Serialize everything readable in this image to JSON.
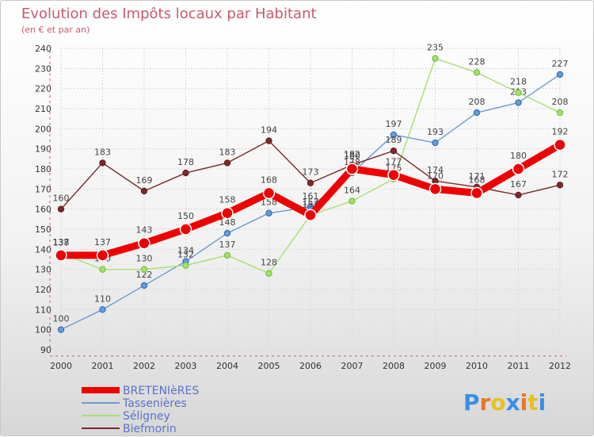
{
  "chart_data": {
    "type": "line",
    "title": "Evolution des Impôts locaux par Habitant",
    "subtitle": "(en € et par an)",
    "x": [
      "2000",
      "2001",
      "2002",
      "2003",
      "2004",
      "2005",
      "2006",
      "2007",
      "2008",
      "2009",
      "2010",
      "2011",
      "2012"
    ],
    "ylim": [
      90,
      240
    ],
    "yticks": [
      90,
      100,
      110,
      120,
      130,
      140,
      150,
      160,
      170,
      180,
      190,
      200,
      210,
      220,
      230,
      240
    ],
    "grid": true,
    "legend_position": "bottom-left",
    "series": [
      {
        "name": "Tassenières",
        "color": "#6b9bd6",
        "marker": "#2f6fc0",
        "values": [
          100,
          110,
          122,
          134,
          148,
          158,
          161,
          178,
          197,
          193,
          208,
          213,
          227
        ],
        "labels": [
          "100",
          "110",
          "122",
          "134",
          "148",
          "158",
          "161",
          "178",
          "197",
          "193",
          "208",
          "213",
          "227"
        ]
      },
      {
        "name": "Séligney",
        "color": "#a8e070",
        "marker": "#6cc43a",
        "values": [
          138,
          130,
          130,
          132,
          137,
          128,
          157,
          164,
          175,
          235,
          228,
          218,
          208
        ],
        "labels": [
          "138",
          "130",
          "130",
          "132",
          "137",
          "128",
          "157",
          "164",
          "175",
          "235",
          "228",
          "218",
          "208"
        ]
      },
      {
        "name": "Biefmorin",
        "color": "#7a2a2a",
        "marker": "#6a1e1e",
        "values": [
          160,
          183,
          169,
          178,
          183,
          194,
          173,
          182,
          189,
          174,
          171,
          167,
          172
        ],
        "labels": [
          "160",
          "183",
          "169",
          "178",
          "183",
          "194",
          "173",
          "182",
          "189",
          "174",
          "171",
          "167",
          "172"
        ]
      },
      {
        "name": "BRETENIèRES",
        "color": "#ee0000",
        "marker": "#ee0000",
        "bold": true,
        "values": [
          137,
          137,
          143,
          150,
          158,
          168,
          157,
          180,
          177,
          170,
          168,
          180,
          192
        ],
        "labels": [
          "137",
          "137",
          "143",
          "150",
          "158",
          "168",
          "157",
          "180",
          "177",
          "170",
          "168",
          "180",
          "192"
        ]
      }
    ]
  },
  "legend_order": [
    "BRETENIèRES",
    "Tassenières",
    "Séligney",
    "Biefmorin"
  ],
  "logo": {
    "text": "Proxiti",
    "letter_colors": [
      "#3a8ee8",
      "#e87722",
      "#e8c020",
      "#3a8ee8",
      "#e87722",
      "#e8c020",
      "#3a8ee8"
    ]
  }
}
